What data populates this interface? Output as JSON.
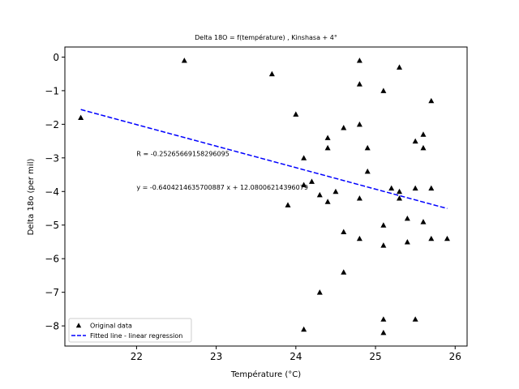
{
  "chart_data": {
    "type": "scatter",
    "title": "Delta 18O = f(température) , Kinshasa + 4°",
    "xlabel": "Température (°C)",
    "ylabel": "Delta 18o (per mil)",
    "xlim": [
      21.1,
      26.15
    ],
    "ylim": [
      -8.6,
      0.3
    ],
    "xticks": [
      22,
      23,
      24,
      25,
      26
    ],
    "yticks": [
      0,
      -1,
      -2,
      -3,
      -4,
      -5,
      -6,
      -7,
      -8
    ],
    "xtick_labels": [
      "22",
      "23",
      "24",
      "25",
      "26"
    ],
    "ytick_labels": [
      "0",
      "−1",
      "−2",
      "−3",
      "−4",
      "−5",
      "−6",
      "−7",
      "−8"
    ],
    "grid": false,
    "legend_position": "lower-left",
    "annotations": [
      {
        "text": "R = -0.25265669158296095",
        "x": 22.0,
        "y": -2.95
      },
      {
        "text": "y = -0.6404214635700887 x + 12.08006214396079",
        "x": 22.0,
        "y": -3.95
      }
    ],
    "series": [
      {
        "name": "Original data",
        "kind": "scatter",
        "marker": "triangle-up",
        "color": "#000000",
        "points": [
          [
            21.3,
            -1.8
          ],
          [
            22.6,
            -0.1
          ],
          [
            23.7,
            -0.5
          ],
          [
            23.9,
            -4.4
          ],
          [
            24.0,
            -1.7
          ],
          [
            24.1,
            -3.0
          ],
          [
            24.1,
            -3.8
          ],
          [
            24.1,
            -8.1
          ],
          [
            24.2,
            -3.7
          ],
          [
            24.3,
            -4.1
          ],
          [
            24.3,
            -7.0
          ],
          [
            24.4,
            -2.4
          ],
          [
            24.4,
            -2.7
          ],
          [
            24.4,
            -4.3
          ],
          [
            24.5,
            -4.0
          ],
          [
            24.6,
            -2.1
          ],
          [
            24.6,
            -5.2
          ],
          [
            24.6,
            -6.4
          ],
          [
            24.8,
            -0.1
          ],
          [
            24.8,
            -0.8
          ],
          [
            24.8,
            -2.0
          ],
          [
            24.8,
            -4.2
          ],
          [
            24.8,
            -5.4
          ],
          [
            24.9,
            -2.7
          ],
          [
            24.9,
            -3.4
          ],
          [
            25.1,
            -1.0
          ],
          [
            25.1,
            -5.0
          ],
          [
            25.1,
            -5.6
          ],
          [
            25.1,
            -7.8
          ],
          [
            25.1,
            -8.2
          ],
          [
            25.2,
            -3.9
          ],
          [
            25.3,
            -0.3
          ],
          [
            25.3,
            -4.0
          ],
          [
            25.3,
            -4.2
          ],
          [
            25.4,
            -4.8
          ],
          [
            25.4,
            -5.5
          ],
          [
            25.5,
            -2.5
          ],
          [
            25.5,
            -3.9
          ],
          [
            25.5,
            -7.8
          ],
          [
            25.6,
            -2.3
          ],
          [
            25.6,
            -2.7
          ],
          [
            25.6,
            -4.9
          ],
          [
            25.7,
            -1.3
          ],
          [
            25.7,
            -3.9
          ],
          [
            25.7,
            -5.4
          ],
          [
            25.9,
            -5.4
          ]
        ]
      },
      {
        "name": "Fitted line - linear regression",
        "kind": "line",
        "style": "dashed",
        "color": "#0000ff",
        "points": [
          [
            21.3,
            -1.561
          ],
          [
            25.9,
            -4.507
          ]
        ]
      }
    ]
  }
}
